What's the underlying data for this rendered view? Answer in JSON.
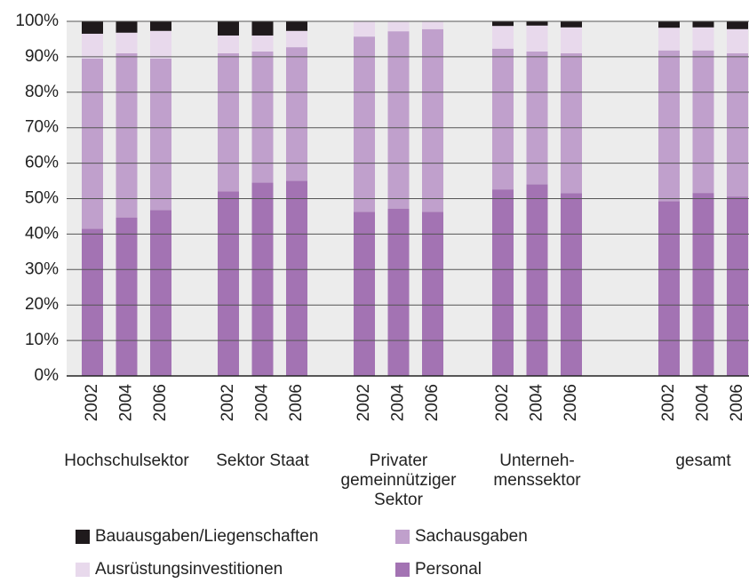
{
  "chart_data": {
    "type": "stacked_bar",
    "categories": [
      "2002",
      "2004",
      "2006",
      "2002",
      "2004",
      "2006",
      "2002",
      "2004",
      "2006",
      "2002",
      "2004",
      "2006",
      "2002",
      "2004",
      "2006"
    ],
    "groups": [
      [
        "Hochschulsektor"
      ],
      [
        "Sektor Staat"
      ],
      [
        "Privater",
        "gemeinnütziger",
        "Sektor"
      ],
      [
        "Unterneh-",
        "menssektor"
      ],
      [
        "gesamt"
      ]
    ],
    "series": [
      {
        "name": "Personal",
        "color": "#a373b3",
        "values": [
          41.5,
          44.7,
          46.8,
          52,
          54.5,
          55,
          46.3,
          47.2,
          46.3,
          52.6,
          54,
          51.5,
          49.3,
          51.6,
          50.6
        ]
      },
      {
        "name": "Sachausgaben",
        "color": "#c0a0cc",
        "values": [
          48,
          46.3,
          42.7,
          39,
          37,
          37.7,
          49.4,
          50,
          51.5,
          39.7,
          37.5,
          39.5,
          42.5,
          40.2,
          40.4
        ]
      },
      {
        "name": "Ausrüstungsinvestitionen",
        "color": "#e8d9ec",
        "values": [
          7,
          5.8,
          7.8,
          5,
          4.5,
          4.6,
          4.3,
          2.8,
          2.2,
          6.4,
          7.3,
          7.3,
          6.4,
          6.5,
          6.8
        ]
      },
      {
        "name": "Bauausgaben/Liegenschaften",
        "color": "#1f1a1c",
        "values": [
          3.5,
          3.2,
          2.7,
          4,
          4,
          2.7,
          0,
          0,
          0,
          1.3,
          1.2,
          1.7,
          1.8,
          1.7,
          2.2
        ]
      }
    ],
    "ylim": [
      0,
      100
    ],
    "yticks": [
      {
        "value": 0,
        "label": "0%"
      },
      {
        "value": 10,
        "label": "10%"
      },
      {
        "value": 20,
        "label": "20%"
      },
      {
        "value": 30,
        "label": "30%"
      },
      {
        "value": 40,
        "label": "40%"
      },
      {
        "value": 50,
        "label": "50%"
      },
      {
        "value": 60,
        "label": "60%"
      },
      {
        "value": 70,
        "label": "70%"
      },
      {
        "value": 80,
        "label": "80%"
      },
      {
        "value": 90,
        "label": "90%"
      },
      {
        "value": 100,
        "label": "100%"
      }
    ],
    "grid": true
  }
}
